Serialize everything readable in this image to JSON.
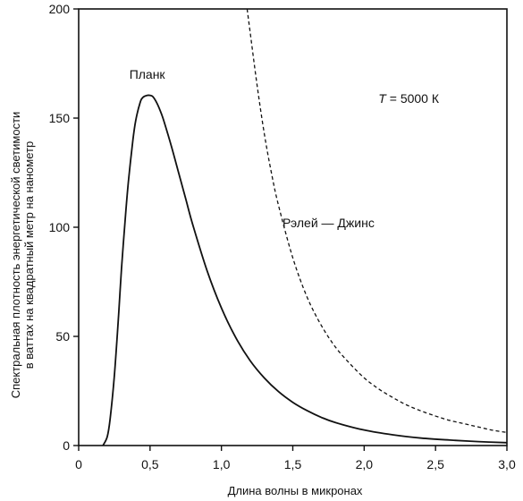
{
  "chart_data": {
    "type": "line",
    "title": "",
    "xlabel": "Длина волны в микронах",
    "ylabel_lines": [
      "Спектральная плотность энергетической светимости",
      "в ваттах на квадратный метр на нанометр"
    ],
    "xlim": [
      0,
      3.0
    ],
    "ylim": [
      0,
      200
    ],
    "x_ticks": [
      {
        "value": 0,
        "label": "0"
      },
      {
        "value": 0.5,
        "label": "0,5"
      },
      {
        "value": 1.0,
        "label": "1,0"
      },
      {
        "value": 1.5,
        "label": "1,5"
      },
      {
        "value": 2.0,
        "label": "2,0"
      },
      {
        "value": 2.5,
        "label": "2,5"
      },
      {
        "value": 3.0,
        "label": "3,0"
      }
    ],
    "y_ticks": [
      {
        "value": 0,
        "label": "0"
      },
      {
        "value": 50,
        "label": "50"
      },
      {
        "value": 100,
        "label": "100"
      },
      {
        "value": 150,
        "label": "150"
      },
      {
        "value": 200,
        "label": "200"
      }
    ],
    "grid": false,
    "series": [
      {
        "name": "Планк",
        "style": "solid",
        "x": [
          0.17,
          0.2,
          0.22,
          0.25,
          0.28,
          0.3,
          0.33,
          0.35,
          0.38,
          0.4,
          0.43,
          0.45,
          0.48,
          0.5,
          0.52,
          0.55,
          0.58,
          0.6,
          0.65,
          0.7,
          0.75,
          0.8,
          0.9,
          1.0,
          1.1,
          1.2,
          1.3,
          1.4,
          1.5,
          1.6,
          1.7,
          1.8,
          2.0,
          2.2,
          2.4,
          2.6,
          2.8,
          3.0
        ],
        "y": [
          0,
          4,
          12,
          32,
          60,
          81,
          107,
          122,
          140,
          149,
          157,
          159.5,
          160.4,
          160.4,
          159.8,
          156.6,
          151.9,
          148,
          137,
          125,
          113,
          101,
          80,
          63,
          49.5,
          39,
          31,
          24.7,
          19.8,
          16,
          12.9,
          10.5,
          7.1,
          4.9,
          3.4,
          2.5,
          1.8,
          1.3
        ]
      },
      {
        "name": "Рэлей — Джинс",
        "style": "dashed",
        "x": [
          1.18,
          1.2,
          1.25,
          1.3,
          1.35,
          1.4,
          1.5,
          1.6,
          1.7,
          1.8,
          1.9,
          2.0,
          2.1,
          2.2,
          2.3,
          2.4,
          2.5,
          2.6,
          2.7,
          2.8,
          2.9,
          3.0
        ],
        "y": [
          200,
          190,
          165,
          143,
          125,
          110,
          86,
          68,
          55,
          45,
          37.5,
          31,
          26,
          22,
          18.5,
          15.8,
          13.5,
          11.5,
          10,
          8.5,
          7,
          6
        ]
      }
    ],
    "annotations": [
      {
        "text": "Планк",
        "x": 0.48,
        "y": 168
      },
      {
        "text": "Рэлей — Джинс",
        "x": 1.75,
        "y": 100
      }
    ],
    "temperature": {
      "symbol": "T",
      "value": " = 5000 К",
      "x": 2.1,
      "y": 157
    }
  }
}
